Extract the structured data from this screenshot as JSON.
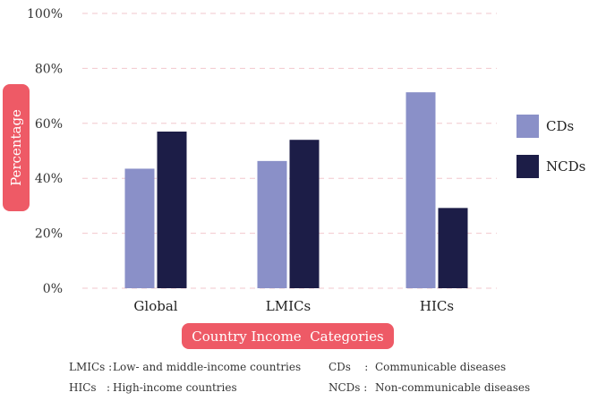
{
  "chart_data": {
    "type": "bar",
    "categories": [
      "Global",
      "LMICs",
      "HICs"
    ],
    "series": [
      {
        "name": "CDs",
        "color": "#8a90c8",
        "values": [
          43.5,
          46.3,
          71.3
        ]
      },
      {
        "name": "NCDs",
        "color": "#1c1d47",
        "values": [
          57.0,
          54.0,
          29.2
        ]
      }
    ],
    "ylim": [
      0,
      100
    ],
    "yticks": [
      0,
      20,
      40,
      60,
      80,
      100
    ],
    "ytick_labels": [
      "0%",
      "20%",
      "40%",
      "60%",
      "80%",
      "100%"
    ],
    "ylabel": "Percentage",
    "xlabel": "Country Income  Categories",
    "legend_position": "right",
    "grid": true
  },
  "notes": [
    {
      "abbr": "LMICs :",
      "text": "Low- and middle-income countries"
    },
    {
      "abbr": "CDs    :",
      "text": "Communicable diseases"
    },
    {
      "abbr": "HICs   :",
      "text": "High-income countries"
    },
    {
      "abbr": "NCDs :",
      "text": "Non-communicable diseases"
    }
  ],
  "colors": {
    "accent": "#ee5a66",
    "grid": "#f2c7cd"
  }
}
